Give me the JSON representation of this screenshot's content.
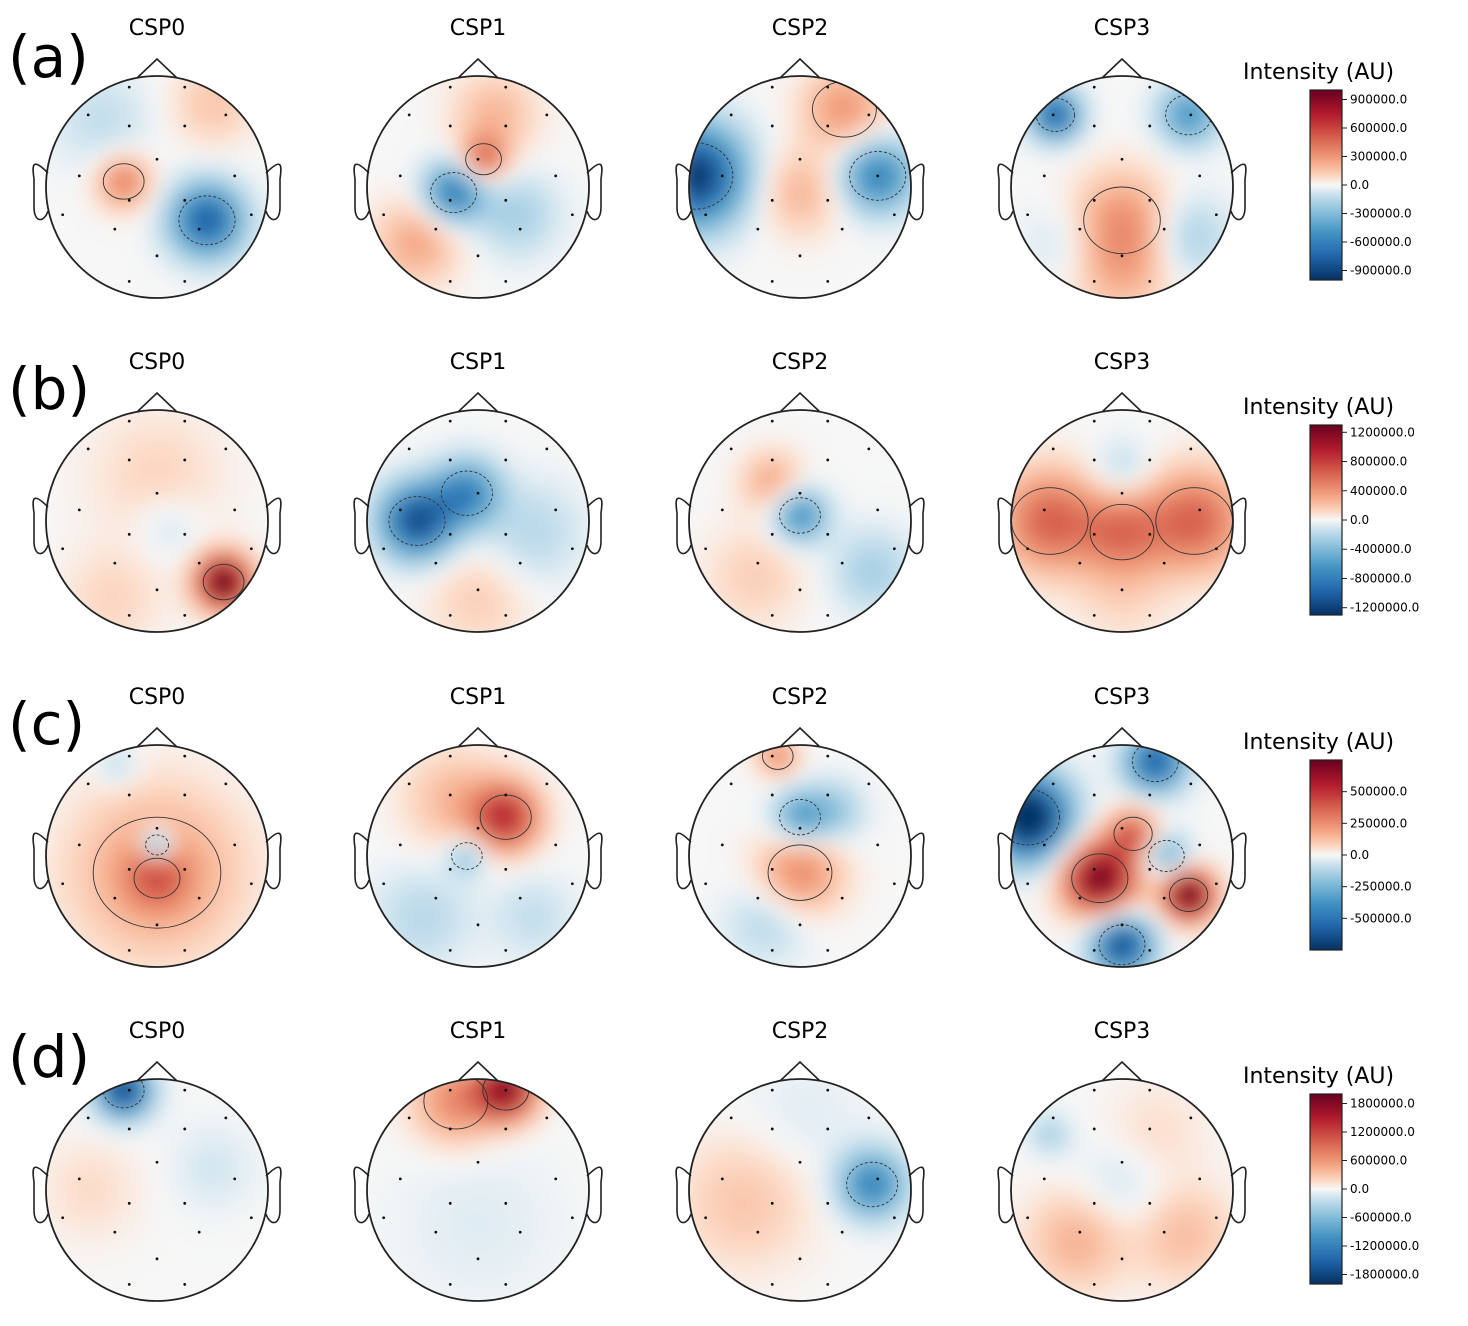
{
  "chart_data": [
    {
      "type": "heatmap",
      "panel_label": "(a)",
      "topomaps": [
        "CSP0",
        "CSP1",
        "CSP2",
        "CSP3"
      ],
      "colorbar": {
        "title": "Intensity (AU)",
        "range": [
          -1000000,
          1000000
        ],
        "ticks": [
          900000,
          600000,
          300000,
          0,
          -300000,
          -600000,
          -900000
        ],
        "tick_labels": [
          "900000.0",
          "600000.0",
          "300000.0",
          "0.0",
          "-300000.0",
          "-600000.0",
          "-900000.0"
        ]
      },
      "blobs": [
        [
          {
            "u": -0.3,
            "v": -0.05,
            "w": 0.4,
            "r": 0.16
          },
          {
            "u": 0.45,
            "v": 0.3,
            "w": -0.8,
            "r": 0.22
          },
          {
            "u": 0.5,
            "v": -0.75,
            "w": 0.15,
            "r": 0.25
          },
          {
            "u": -0.5,
            "v": -0.6,
            "w": -0.12,
            "r": 0.3
          }
        ],
        [
          {
            "u": 0.05,
            "v": -0.25,
            "w": 0.5,
            "r": 0.14
          },
          {
            "u": -0.22,
            "v": 0.05,
            "w": -0.65,
            "r": 0.18
          },
          {
            "u": 0.35,
            "v": 0.25,
            "w": -0.2,
            "r": 0.25
          },
          {
            "u": -0.55,
            "v": 0.5,
            "w": 0.25,
            "r": 0.25
          },
          {
            "u": 0.15,
            "v": -0.65,
            "w": 0.2,
            "r": 0.25
          }
        ],
        [
          {
            "u": -0.95,
            "v": -0.1,
            "w": -1.0,
            "r": 0.3
          },
          {
            "u": 0.7,
            "v": -0.1,
            "w": -0.6,
            "r": 0.22
          },
          {
            "u": 0.0,
            "v": 0.05,
            "w": 0.2,
            "r": 0.25
          },
          {
            "u": 0.4,
            "v": -0.7,
            "w": 0.3,
            "r": 0.25
          }
        ],
        [
          {
            "u": -0.6,
            "v": -0.65,
            "w": -0.8,
            "r": 0.15
          },
          {
            "u": 0.6,
            "v": -0.65,
            "w": -0.5,
            "r": 0.18
          },
          {
            "u": 0.0,
            "v": 0.3,
            "w": 0.3,
            "r": 0.3
          },
          {
            "u": 0.0,
            "v": 0.75,
            "w": 0.2,
            "r": 0.3
          },
          {
            "u": -0.5,
            "v": 0.5,
            "w": -0.1,
            "r": 0.25
          },
          {
            "u": 0.6,
            "v": 0.45,
            "w": -0.2,
            "r": 0.25
          }
        ]
      ]
    },
    {
      "type": "heatmap",
      "panel_label": "(b)",
      "topomaps": [
        "CSP0",
        "CSP1",
        "CSP2",
        "CSP3"
      ],
      "colorbar": {
        "title": "Intensity (AU)",
        "range": [
          -1300000,
          1300000
        ],
        "ticks": [
          1200000,
          800000,
          400000,
          0,
          -400000,
          -800000,
          -1200000
        ],
        "tick_labels": [
          "1200000.0",
          "800000.0",
          "400000.0",
          "0.0",
          "-400000.0",
          "-800000.0",
          "-1200000.0"
        ]
      },
      "blobs": [
        [
          {
            "u": 0.6,
            "v": 0.55,
            "w": 1.1,
            "r": 0.16
          },
          {
            "u": 0.0,
            "v": -0.4,
            "w": 0.1,
            "r": 0.4
          },
          {
            "u": 0.1,
            "v": 0.05,
            "w": -0.1,
            "r": 0.2
          },
          {
            "u": -0.4,
            "v": 0.7,
            "w": 0.1,
            "r": 0.3
          }
        ],
        [
          {
            "u": -0.55,
            "v": 0.0,
            "w": -0.9,
            "r": 0.22
          },
          {
            "u": -0.1,
            "v": -0.25,
            "w": -0.6,
            "r": 0.2
          },
          {
            "u": 0.5,
            "v": 0.1,
            "w": -0.15,
            "r": 0.3
          },
          {
            "u": 0.0,
            "v": 0.7,
            "w": 0.12,
            "r": 0.3
          }
        ],
        [
          {
            "u": 0.0,
            "v": -0.05,
            "w": -0.55,
            "r": 0.16
          },
          {
            "u": -0.25,
            "v": -0.35,
            "w": 0.25,
            "r": 0.18
          },
          {
            "u": 0.65,
            "v": 0.45,
            "w": -0.2,
            "r": 0.25
          },
          {
            "u": -0.4,
            "v": 0.5,
            "w": 0.12,
            "r": 0.3
          }
        ],
        [
          {
            "u": -0.65,
            "v": 0.0,
            "w": 0.5,
            "r": 0.3
          },
          {
            "u": 0.65,
            "v": 0.0,
            "w": 0.5,
            "r": 0.3
          },
          {
            "u": 0.0,
            "v": 0.1,
            "w": 0.4,
            "r": 0.25
          },
          {
            "u": 0.0,
            "v": -0.45,
            "w": -0.15,
            "r": 0.18
          },
          {
            "u": 0.0,
            "v": 0.65,
            "w": 0.1,
            "r": 0.3
          }
        ]
      ]
    },
    {
      "type": "heatmap",
      "panel_label": "(c)",
      "topomaps": [
        "CSP0",
        "CSP1",
        "CSP2",
        "CSP3"
      ],
      "colorbar": {
        "title": "Intensity (AU)",
        "range": [
          -750000,
          750000
        ],
        "ticks": [
          500000,
          250000,
          0,
          -250000,
          -500000
        ],
        "tick_labels": [
          "500000.0",
          "250000.0",
          "0.0",
          "-250000.0",
          "-500000.0"
        ]
      },
      "blobs": [
        [
          {
            "u": 0.0,
            "v": 0.15,
            "w": 0.3,
            "r": 0.5
          },
          {
            "u": 0.0,
            "v": 0.2,
            "w": 0.3,
            "r": 0.18
          },
          {
            "u": 0.0,
            "v": -0.1,
            "w": -0.7,
            "r": 0.09
          },
          {
            "u": -0.35,
            "v": -0.8,
            "w": -0.15,
            "r": 0.12
          }
        ],
        [
          {
            "u": 0.25,
            "v": -0.35,
            "w": 0.7,
            "r": 0.2
          },
          {
            "u": -0.1,
            "v": 0.0,
            "w": -0.3,
            "r": 0.12
          },
          {
            "u": -0.5,
            "v": 0.55,
            "w": -0.15,
            "r": 0.3
          },
          {
            "u": 0.5,
            "v": 0.55,
            "w": -0.12,
            "r": 0.25
          },
          {
            "u": -0.2,
            "v": -0.5,
            "w": 0.2,
            "r": 0.3
          }
        ],
        []
      ],
      "blobs_extra": [
        [
          {
            "u": -0.2,
            "v": -0.9,
            "w": 0.35,
            "r": 0.12
          },
          {
            "u": 0.0,
            "v": -0.35,
            "w": -0.45,
            "r": 0.16
          },
          {
            "u": 0.3,
            "v": -0.4,
            "w": -0.25,
            "r": 0.18
          },
          {
            "u": 0.0,
            "v": 0.15,
            "w": 0.35,
            "r": 0.25
          },
          {
            "u": -0.3,
            "v": 0.6,
            "w": -0.15,
            "r": 0.25
          }
        ],
        [
          {
            "u": -0.85,
            "v": -0.35,
            "w": -1.2,
            "r": 0.25
          },
          {
            "u": 0.3,
            "v": -0.85,
            "w": -0.8,
            "r": 0.18
          },
          {
            "u": -0.2,
            "v": 0.2,
            "w": 1.0,
            "r": 0.22
          },
          {
            "u": 0.1,
            "v": -0.2,
            "w": 0.5,
            "r": 0.15
          },
          {
            "u": 0.6,
            "v": 0.35,
            "w": 1.1,
            "r": 0.15
          },
          {
            "u": 0.0,
            "v": 0.8,
            "w": -0.9,
            "r": 0.18
          },
          {
            "u": 0.4,
            "v": 0.0,
            "w": -0.4,
            "r": 0.14
          }
        ]
      ]
    },
    {
      "type": "heatmap",
      "panel_label": "(d)",
      "topomaps": [
        "CSP0",
        "CSP1",
        "CSP2",
        "CSP3"
      ],
      "colorbar": {
        "title": "Intensity (AU)",
        "range": [
          -2000000,
          2000000
        ],
        "ticks": [
          1800000,
          1200000,
          600000,
          0,
          -600000,
          -1200000,
          -1800000
        ],
        "tick_labels": [
          "1800000.0",
          "1200000.0",
          "600000.0",
          "0.0",
          "-600000.0",
          "-1200000.0",
          "-1800000.0"
        ]
      },
      "blobs": [
        [
          {
            "u": -0.3,
            "v": -0.9,
            "w": -0.95,
            "r": 0.16
          },
          {
            "u": 0.5,
            "v": -0.2,
            "w": -0.08,
            "r": 0.25
          },
          {
            "u": -0.6,
            "v": 0.0,
            "w": 0.08,
            "r": 0.3
          }
        ],
        [
          {
            "u": 0.25,
            "v": -0.9,
            "w": 0.9,
            "r": 0.18
          },
          {
            "u": -0.2,
            "v": -0.8,
            "w": 0.35,
            "r": 0.25
          },
          {
            "u": 0.0,
            "v": 0.3,
            "w": -0.05,
            "r": 0.5
          }
        ],
        [
          {
            "u": 0.65,
            "v": -0.05,
            "w": -0.6,
            "r": 0.2
          },
          {
            "u": -0.5,
            "v": 0.1,
            "w": 0.15,
            "r": 0.4
          },
          {
            "u": 0.0,
            "v": -0.6,
            "w": -0.05,
            "r": 0.4
          }
        ],
        [
          {
            "u": -0.65,
            "v": -0.5,
            "w": -0.2,
            "r": 0.12
          },
          {
            "u": -0.4,
            "v": 0.45,
            "w": 0.22,
            "r": 0.3
          },
          {
            "u": 0.55,
            "v": 0.4,
            "w": 0.18,
            "r": 0.3
          },
          {
            "u": 0.0,
            "v": 0.0,
            "w": -0.1,
            "r": 0.3
          },
          {
            "u": 0.3,
            "v": -0.5,
            "w": 0.08,
            "r": 0.3
          }
        ]
      ]
    }
  ]
}
